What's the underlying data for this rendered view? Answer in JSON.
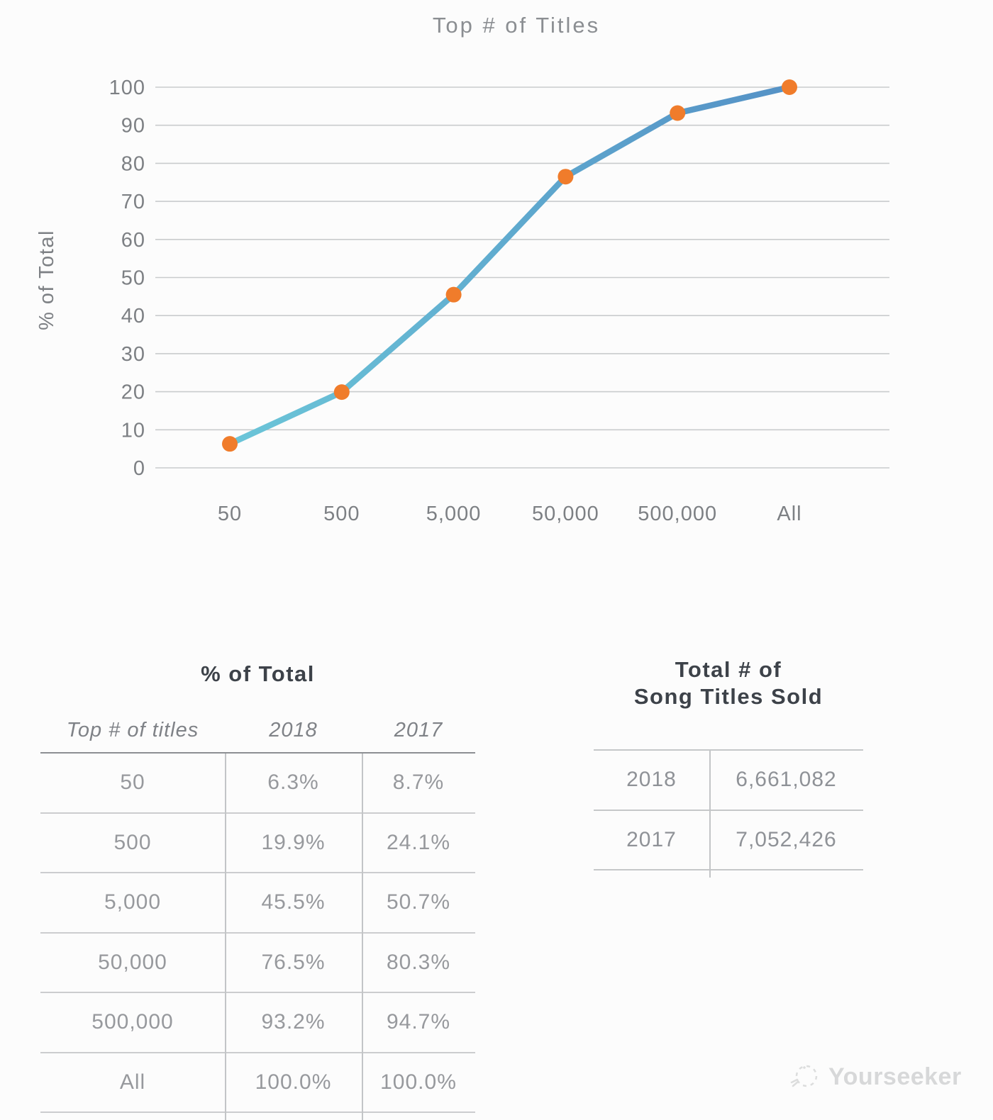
{
  "chart_data": {
    "type": "line",
    "title": "Top # of Titles",
    "xlabel": "",
    "ylabel": "% of Total",
    "categories": [
      "50",
      "500",
      "5,000",
      "50,000",
      "500,000",
      "All"
    ],
    "series": [
      {
        "name": "2018",
        "values": [
          6.3,
          19.9,
          45.5,
          76.5,
          93.2,
          100.0
        ]
      }
    ],
    "ylim": [
      0,
      100
    ],
    "ytick_step": 10,
    "grid": true,
    "legend": "none"
  },
  "colors": {
    "line_gradient_start": "#6bc5d8",
    "line_gradient_end": "#5592c6",
    "marker": "#f07c2b",
    "grid": "#c9cbcd",
    "axis_text": "#7d8084",
    "title_text": "#8b8e92"
  },
  "left_table": {
    "title": "% of Total",
    "columns": [
      "Top # of titles",
      "2018",
      "2017"
    ],
    "rows": [
      [
        "50",
        "6.3%",
        "8.7%"
      ],
      [
        "500",
        "19.9%",
        "24.1%"
      ],
      [
        "5,000",
        "45.5%",
        "50.7%"
      ],
      [
        "50,000",
        "76.5%",
        "80.3%"
      ],
      [
        "500,000",
        "93.2%",
        "94.7%"
      ],
      [
        "All",
        "100.0%",
        "100.0%"
      ]
    ]
  },
  "right_table": {
    "title_line1": "Total # of",
    "title_line2": "Song Titles Sold",
    "rows": [
      [
        "2018",
        "6,661,082"
      ],
      [
        "2017",
        "7,052,426"
      ]
    ]
  },
  "watermark": {
    "label": "Yourseeker"
  }
}
